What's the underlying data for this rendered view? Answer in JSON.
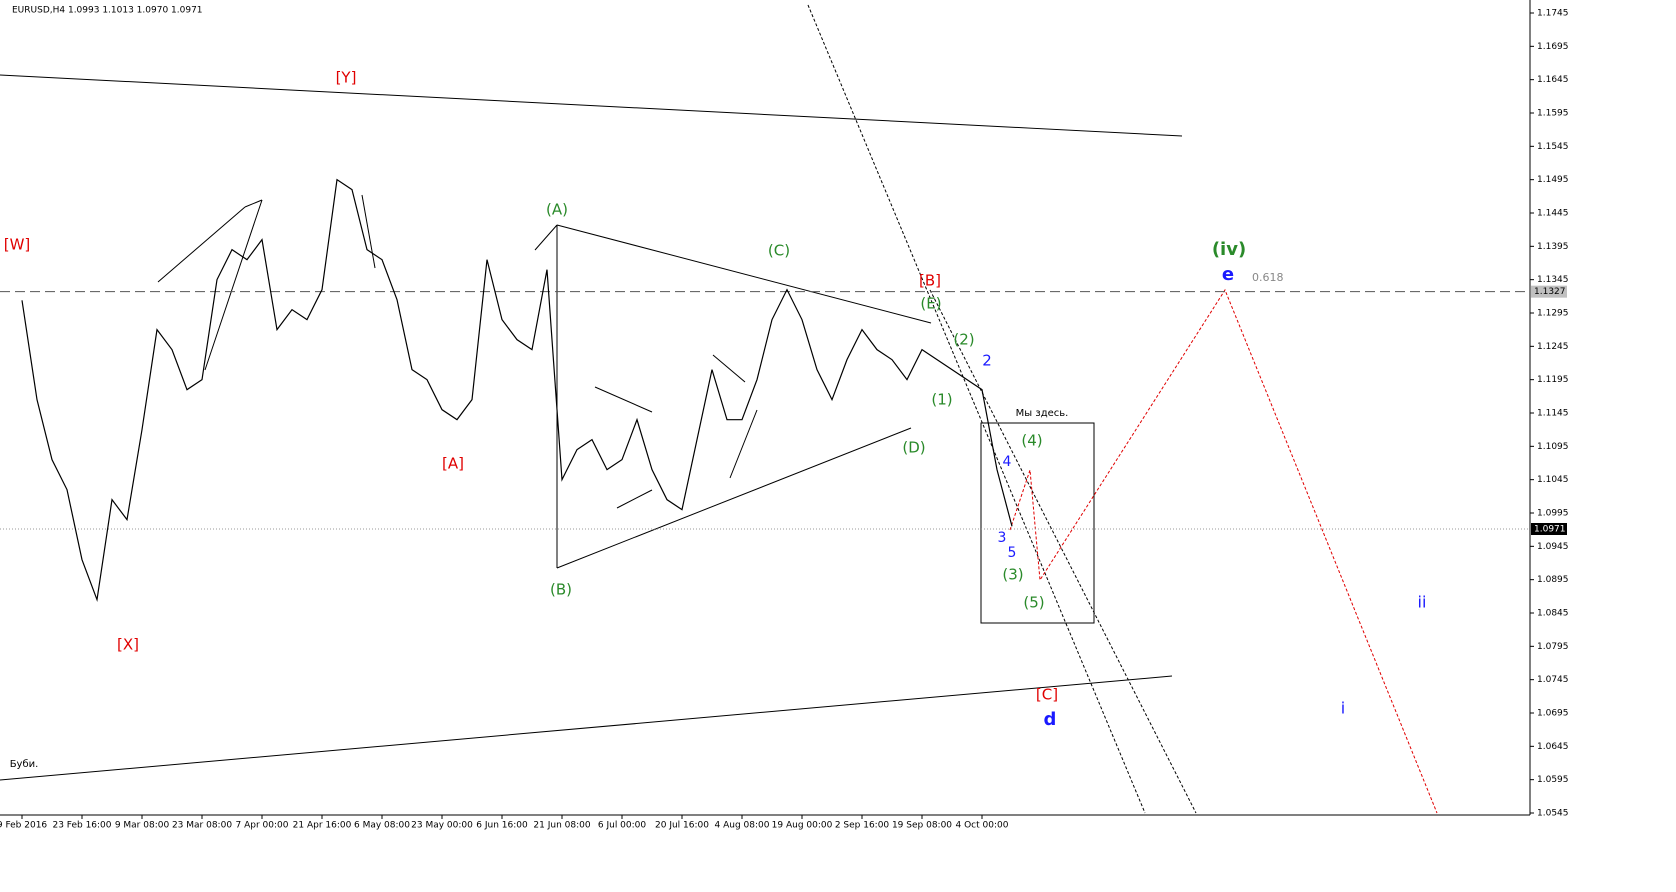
{
  "chart_data": {
    "type": "line",
    "title": "EURUSD,H4  1.0993 1.1013 1.0970 1.0971",
    "categories": [
      "9 Feb 2016",
      null,
      null,
      null,
      "23 Feb 16:00",
      null,
      null,
      null,
      "9 Mar 08:00",
      null,
      null,
      null,
      "23 Mar 08:00",
      null,
      null,
      null,
      "7 Apr 00:00",
      null,
      null,
      null,
      "21 Apr 16:00",
      null,
      null,
      null,
      "6 May 08:00",
      null,
      null,
      null,
      "23 May 00:00",
      null,
      null,
      null,
      "6 Jun 16:00",
      null,
      null,
      null,
      "21 Jun 08:00",
      null,
      null,
      null,
      "6 Jul 00:00",
      null,
      null,
      null,
      "20 Jul 16:00",
      null,
      null,
      null,
      "4 Aug 08:00",
      null,
      null,
      null,
      "19 Aug 00:00",
      null,
      null,
      null,
      "2 Sep 16:00",
      null,
      null,
      null,
      "19 Sep 08:00",
      null,
      null,
      null,
      "4 Oct 00:00",
      null,
      null
    ],
    "series": [
      {
        "color": "#000000",
        "values": [
          1.1314,
          1.1165,
          1.1075,
          1.103,
          1.0925,
          1.0865,
          1.1015,
          1.0985,
          1.112,
          1.127,
          1.124,
          1.118,
          1.1195,
          1.1345,
          1.139,
          1.1375,
          1.1405,
          1.127,
          1.13,
          1.1285,
          1.133,
          1.1495,
          1.148,
          1.139,
          1.1375,
          1.1315,
          1.121,
          1.1195,
          1.115,
          1.1135,
          1.1165,
          1.1375,
          1.1285,
          1.1255,
          1.124,
          1.136,
          1.1045,
          1.109,
          1.1105,
          1.106,
          1.1075,
          1.1135,
          1.106,
          1.1015,
          1.1,
          1.1105,
          1.121,
          1.1135,
          1.1135,
          1.1195,
          1.1285,
          1.133,
          1.1285,
          1.121,
          1.1165,
          1.1225,
          1.127,
          1.124,
          1.1225,
          1.1195,
          1.124,
          1.1225,
          1.121,
          1.1195,
          1.118,
          1.106,
          1.0975
        ]
      }
    ],
    "ylim": [
      1.0545,
      1.1745
    ],
    "yticks": [
      1.0545,
      1.0595,
      1.0645,
      1.0695,
      1.0745,
      1.0795,
      1.0845,
      1.0895,
      1.0945,
      1.0995,
      1.1045,
      1.1095,
      1.1145,
      1.1195,
      1.1245,
      1.1295,
      1.1345,
      1.1395,
      1.1445,
      1.1495,
      1.1545,
      1.1595,
      1.1645,
      1.1695,
      1.1745
    ],
    "levels": [
      {
        "value": 1.1327,
        "style": "dashed"
      },
      {
        "value": 1.0971,
        "style": "dotted"
      }
    ],
    "annotations": [
      {
        "text": "[Y]",
        "color": "#e00000"
      },
      {
        "text": "[W]",
        "color": "#e00000"
      },
      {
        "text": "[X]",
        "color": "#e00000"
      },
      {
        "text": "[A]",
        "color": "#e00000"
      },
      {
        "text": "(A)",
        "color": "#2a8a2a"
      },
      {
        "text": "(B)",
        "color": "#2a8a2a"
      },
      {
        "text": "(C)",
        "color": "#2a8a2a"
      },
      {
        "text": "(D)",
        "color": "#2a8a2a"
      },
      {
        "text": "(E)",
        "color": "#2a8a2a"
      },
      {
        "text": "[B]",
        "color": "#e00000"
      },
      {
        "text": "(2)",
        "color": "#2a8a2a"
      },
      {
        "text": "2",
        "color": "#1a1aff"
      },
      {
        "text": "(1)",
        "color": "#2a8a2a"
      },
      {
        "text": "Мы здесь.",
        "color": "#000000"
      },
      {
        "text": "(4)",
        "color": "#2a8a2a"
      },
      {
        "text": "4",
        "color": "#1a1aff"
      },
      {
        "text": "3",
        "color": "#1a1aff"
      },
      {
        "text": "5",
        "color": "#1a1aff"
      },
      {
        "text": "(3)",
        "color": "#2a8a2a"
      },
      {
        "text": "(5)",
        "color": "#2a8a2a"
      },
      {
        "text": "[C]",
        "color": "#e00000"
      },
      {
        "text": "d",
        "color": "#1a1aff"
      },
      {
        "text": "(iv)",
        "color": "#2a8a2a"
      },
      {
        "text": "e",
        "color": "#1a1aff"
      },
      {
        "text": "0.618",
        "color": "#888888"
      },
      {
        "text": "ii",
        "color": "#1a1aff"
      },
      {
        "text": "i",
        "color": "#1a1aff"
      },
      {
        "text": "Буби.",
        "color": "#000000"
      }
    ]
  }
}
